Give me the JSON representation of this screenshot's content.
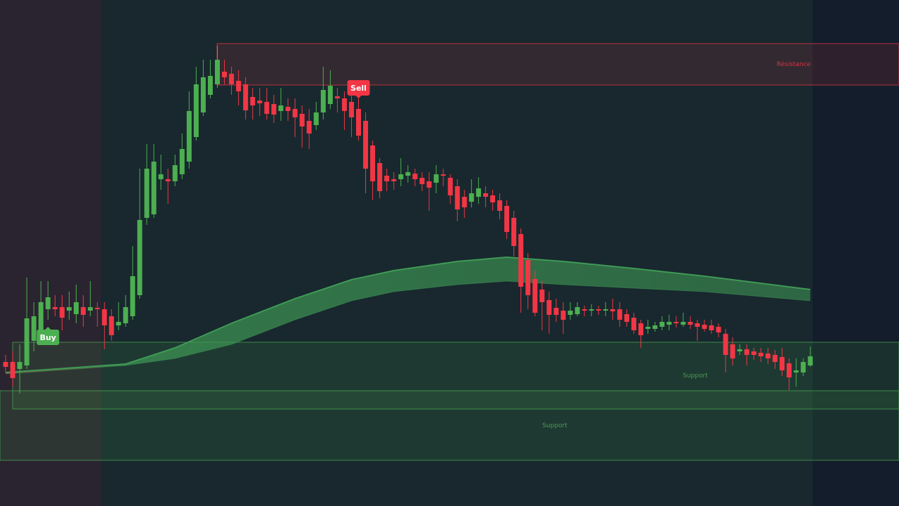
{
  "chart_data": {
    "type": "candlestick",
    "ylim": [
      0,
      720
    ],
    "up_color": "#4caf50",
    "down_color": "#f23645",
    "open": [
      205,
      205,
      195,
      200,
      235,
      250,
      280,
      283,
      283,
      278,
      273,
      283,
      278,
      282,
      280,
      270,
      257,
      260,
      270,
      300,
      410,
      415,
      465,
      465,
      462,
      472,
      490,
      525,
      560,
      585,
      600,
      618,
      615,
      605,
      600,
      582,
      577,
      575,
      572,
      562,
      568,
      565,
      558,
      548,
      542,
      560,
      572,
      583,
      580,
      575,
      565,
      548,
      513,
      488,
      470,
      465,
      465,
      470,
      473,
      467,
      462,
      460,
      472,
      467,
      455,
      440,
      433,
      440,
      445,
      442,
      435,
      427,
      410,
      387,
      350,
      323,
      308,
      293,
      282,
      278,
      272,
      273,
      280,
      278,
      280,
      278,
      280,
      280,
      273,
      268,
      260,
      252,
      252,
      255,
      258,
      262,
      258,
      262,
      260,
      258,
      257,
      255,
      245,
      230,
      220,
      223,
      220,
      218,
      217,
      215,
      212,
      203,
      190,
      190,
      200
    ],
    "high": [
      215,
      220,
      230,
      325,
      290,
      320,
      320,
      300,
      300,
      305,
      315,
      300,
      320,
      290,
      290,
      280,
      290,
      300,
      370,
      480,
      515,
      515,
      500,
      480,
      500,
      530,
      590,
      625,
      635,
      635,
      655,
      635,
      625,
      620,
      610,
      595,
      595,
      595,
      585,
      595,
      580,
      580,
      570,
      565,
      575,
      625,
      620,
      595,
      590,
      585,
      580,
      560,
      520,
      495,
      480,
      475,
      495,
      485,
      480,
      475,
      475,
      485,
      480,
      472,
      465,
      450,
      465,
      468,
      455,
      450,
      445,
      435,
      420,
      395,
      360,
      335,
      320,
      305,
      295,
      290,
      290,
      290,
      285,
      287,
      285,
      290,
      295,
      290,
      280,
      275,
      265,
      265,
      262,
      270,
      272,
      270,
      275,
      270,
      265,
      265,
      265,
      260,
      252,
      240,
      230,
      230,
      225,
      225,
      225,
      222,
      225,
      210,
      210,
      210,
      227
    ],
    "low": [
      190,
      170,
      160,
      195,
      220,
      240,
      265,
      270,
      250,
      265,
      260,
      255,
      270,
      255,
      223,
      235,
      250,
      255,
      265,
      295,
      400,
      410,
      450,
      430,
      455,
      465,
      480,
      520,
      555,
      580,
      595,
      600,
      585,
      570,
      550,
      550,
      555,
      550,
      545,
      548,
      548,
      525,
      510,
      508,
      535,
      550,
      565,
      560,
      535,
      525,
      520,
      445,
      435,
      438,
      448,
      450,
      455,
      460,
      455,
      448,
      420,
      445,
      455,
      430,
      405,
      410,
      425,
      430,
      425,
      420,
      408,
      380,
      355,
      275,
      280,
      270,
      250,
      245,
      262,
      245,
      265,
      270,
      270,
      270,
      272,
      270,
      265,
      255,
      255,
      245,
      225,
      245,
      248,
      250,
      250,
      254,
      255,
      252,
      235,
      248,
      245,
      240,
      190,
      200,
      215,
      200,
      208,
      205,
      202,
      195,
      185,
      165,
      170,
      185,
      198
    ],
    "close": [
      198,
      182,
      205,
      267,
      270,
      290,
      297,
      280,
      268,
      283,
      290,
      272,
      283,
      280,
      257,
      243,
      262,
      283,
      327,
      407,
      480,
      490,
      472,
      462,
      485,
      508,
      562,
      600,
      610,
      612,
      635,
      610,
      600,
      590,
      563,
      570,
      573,
      558,
      557,
      570,
      562,
      553,
      540,
      530,
      560,
      592,
      598,
      580,
      562,
      553,
      527,
      480,
      462,
      448,
      462,
      462,
      472,
      475,
      465,
      458,
      453,
      472,
      470,
      442,
      422,
      425,
      445,
      452,
      440,
      432,
      420,
      390,
      370,
      312,
      300,
      275,
      290,
      272,
      272,
      265,
      278,
      283,
      278,
      280,
      278,
      280,
      277,
      265,
      262,
      250,
      243,
      255,
      257,
      262,
      262,
      260,
      262,
      258,
      255,
      252,
      250,
      247,
      215,
      210,
      223,
      215,
      215,
      213,
      210,
      205,
      193,
      183,
      193,
      205,
      213
    ],
    "ribbon": {
      "color": "#3f9a55",
      "x": [
        0,
        17,
        24,
        32,
        41,
        49,
        55,
        64,
        71,
        79,
        89,
        99,
        114
      ],
      "upper": [
        190,
        202,
        225,
        260,
        295,
        322,
        335,
        348,
        354,
        348,
        338,
        327,
        308
      ],
      "lower": [
        188,
        200,
        210,
        230,
        265,
        292,
        305,
        315,
        320,
        315,
        310,
        305,
        292
      ]
    },
    "zones": [
      {
        "label": "Résistance",
        "range": [
          599,
          658
        ],
        "color": "#f23645"
      },
      {
        "label": "Support",
        "range": [
          138,
          233
        ],
        "color": "#4caf50"
      },
      {
        "label": "Support",
        "range": [
          65,
          164
        ],
        "color": "#4caf50"
      }
    ],
    "signals": [
      {
        "label": "Buy",
        "color": "#4caf50"
      },
      {
        "label": "Sell",
        "color": "#f23645"
      }
    ]
  }
}
